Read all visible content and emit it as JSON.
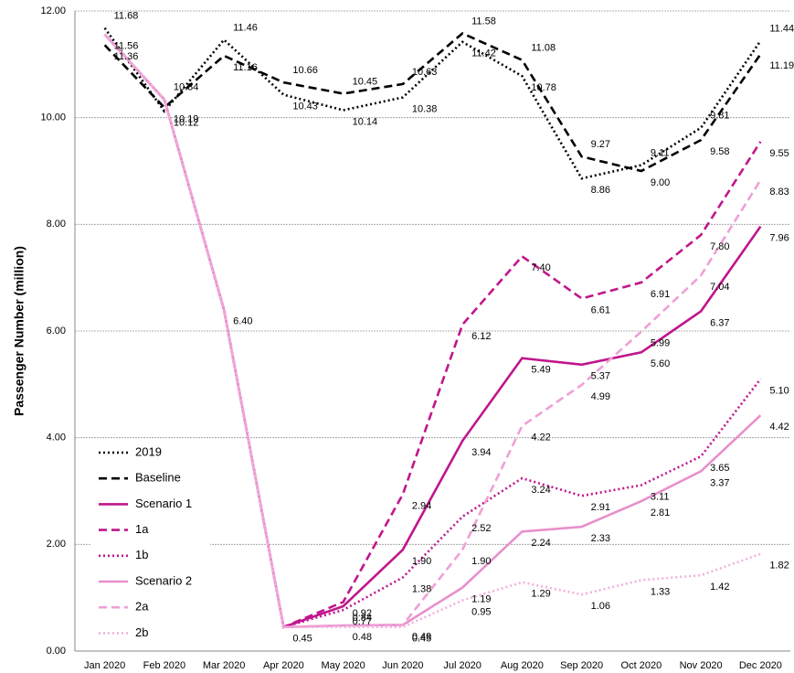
{
  "chart_data": {
    "type": "line",
    "y_label": "Passenger Number (million)",
    "categories": [
      "Jan 2020",
      "Feb 2020",
      "Mar 2020",
      "Apr 2020",
      "May 2020",
      "Jun 2020",
      "Jul 2020",
      "Aug 2020",
      "Sep 2020",
      "Oct 2020",
      "Nov 2020",
      "Dec 2020"
    ],
    "ylim": [
      0,
      12
    ],
    "yticks": [
      {
        "value": 0,
        "label": "0.00"
      },
      {
        "value": 2,
        "label": "2.00"
      },
      {
        "value": 4,
        "label": "4.00"
      },
      {
        "value": 6,
        "label": "6.00"
      },
      {
        "value": 8,
        "label": "8.00"
      },
      {
        "value": 10,
        "label": "10.00"
      },
      {
        "value": 12,
        "label": "12.00"
      }
    ],
    "grid": true,
    "legend": "lower-left",
    "series": [
      {
        "name": "2019",
        "color": "#000000",
        "style": "dotted",
        "values": [
          11.68,
          10.12,
          11.46,
          10.43,
          10.14,
          10.38,
          11.42,
          10.78,
          8.86,
          9.11,
          9.81,
          11.44
        ],
        "value_labels": [
          "11.68",
          "10.12",
          "11.46",
          "10.43",
          "10.14",
          "10.38",
          "11.42",
          "10.78",
          "8.86",
          "9.11",
          "9.81",
          "11.44"
        ]
      },
      {
        "name": "Baseline",
        "color": "#000000",
        "style": "dashed",
        "values": [
          11.36,
          10.19,
          11.16,
          10.66,
          10.45,
          10.63,
          11.58,
          11.08,
          9.27,
          9.0,
          9.58,
          11.19
        ],
        "value_labels": [
          "11.36",
          "10.19",
          "11.16",
          "10.66",
          "10.45",
          "10.63",
          "11.58",
          "11.08",
          "9.27",
          "9.00",
          "9.58",
          "11.19"
        ]
      },
      {
        "name": "Scenario 1",
        "color": "#c0168c",
        "style": "solid",
        "values": [
          11.56,
          10.34,
          6.4,
          0.45,
          0.84,
          1.9,
          3.94,
          5.49,
          5.37,
          5.6,
          6.37,
          7.96
        ],
        "value_labels": [
          "11.56",
          "10.34",
          "6.40",
          "0.45",
          "0.84",
          "1.90",
          "3.94",
          "5.49",
          "5.37",
          "5.60",
          "6.37",
          "7.96"
        ]
      },
      {
        "name": "1a",
        "color": "#c0168c",
        "style": "dashed",
        "values": [
          11.56,
          10.34,
          6.4,
          0.45,
          0.92,
          2.94,
          6.12,
          7.4,
          6.61,
          6.91,
          7.8,
          9.55
        ],
        "value_labels": [
          null,
          null,
          null,
          null,
          "0.92",
          "2.94",
          "6.12",
          "7.40",
          "6.61",
          "6.91",
          "7.80",
          "9.55"
        ]
      },
      {
        "name": "1b",
        "color": "#c0168c",
        "style": "dotted",
        "values": [
          11.56,
          10.34,
          6.4,
          0.45,
          0.77,
          1.38,
          2.52,
          3.24,
          2.91,
          3.11,
          3.65,
          5.1
        ],
        "value_labels": [
          null,
          null,
          null,
          null,
          "0.77",
          "1.38",
          "2.52",
          "3.24",
          "2.91",
          "3.11",
          "3.65",
          "5.10"
        ]
      },
      {
        "name": "Scenario 2",
        "color": "#e88fcc",
        "style": "solid",
        "values": [
          11.56,
          10.34,
          6.4,
          0.45,
          0.48,
          0.49,
          1.19,
          2.24,
          2.33,
          2.81,
          3.37,
          4.42
        ],
        "value_labels": [
          null,
          null,
          null,
          null,
          "0.48",
          "0.49",
          "1.19",
          "2.24",
          "2.33",
          "2.81",
          "3.37",
          "4.42"
        ]
      },
      {
        "name": "2a",
        "color": "#eea0d6",
        "style": "dashed",
        "values": [
          11.56,
          10.34,
          6.4,
          0.45,
          0.48,
          0.49,
          1.9,
          4.22,
          4.99,
          5.99,
          7.04,
          8.83
        ],
        "value_labels": [
          null,
          null,
          null,
          null,
          null,
          null,
          "1.90",
          "4.22",
          "4.99",
          "5.99",
          "7.04",
          "8.83"
        ]
      },
      {
        "name": "2b",
        "color": "#f2b0dc",
        "style": "dotted",
        "values": [
          11.56,
          10.34,
          6.4,
          0.45,
          0.45,
          0.45,
          0.95,
          1.29,
          1.06,
          1.33,
          1.42,
          1.82
        ],
        "value_labels": [
          null,
          null,
          null,
          null,
          null,
          "0.45",
          "0.95",
          "1.29",
          "1.06",
          "1.33",
          "1.42",
          "1.82"
        ]
      }
    ]
  }
}
